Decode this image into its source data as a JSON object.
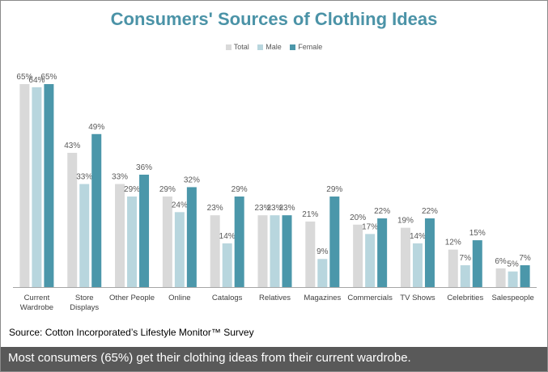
{
  "chart_data": {
    "type": "bar",
    "title": "Consumers' Sources of Clothing Ideas",
    "categories": [
      "Current Wardrobe",
      "Store Displays",
      "Other People",
      "Online",
      "Catalogs",
      "Relatives",
      "Magazines",
      "Commercials",
      "TV Shows",
      "Celebrities",
      "Salespeople"
    ],
    "series": [
      {
        "name": "Total",
        "color": "#d9d9d9",
        "values": [
          65,
          43,
          33,
          29,
          23,
          23,
          21,
          20,
          19,
          12,
          6
        ]
      },
      {
        "name": "Male",
        "color": "#b8d6de",
        "values": [
          64,
          33,
          29,
          24,
          14,
          23,
          9,
          17,
          14,
          7,
          5
        ]
      },
      {
        "name": "Female",
        "color": "#4b97aa",
        "values": [
          65,
          49,
          36,
          32,
          29,
          23,
          29,
          22,
          22,
          15,
          7
        ]
      }
    ],
    "value_format": "percent",
    "ylim": [
      0,
      70
    ],
    "legend": "top",
    "grid": false,
    "xlabel": "",
    "ylabel": ""
  },
  "source": "Source: Cotton Incorporated’s  Lifestyle Monitor™ Survey",
  "footer": "Most consumers (65%) get their clothing ideas from their current wardrobe."
}
